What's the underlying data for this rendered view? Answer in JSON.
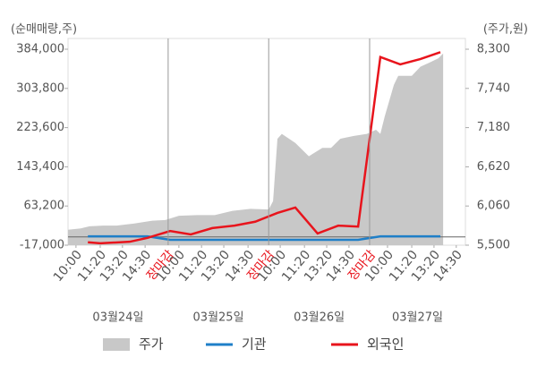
{
  "chart_data": {
    "type": "line",
    "y_axis_label": "(순매매량,주)",
    "y2_axis_label": "(주가,원)",
    "xlim": [
      0,
      100
    ],
    "xticks": [
      {
        "value": 2,
        "label": "10:00"
      },
      {
        "value": 8.1,
        "label": "11:20"
      },
      {
        "value": 13.7,
        "label": "13:20"
      },
      {
        "value": 19.4,
        "label": "14:30"
      },
      {
        "value": 25.2,
        "label": "장마감"
      },
      {
        "value": 27.9,
        "label": "10:00"
      },
      {
        "value": 33.6,
        "label": "11:20"
      },
      {
        "value": 39.2,
        "label": "13:20"
      },
      {
        "value": 45.3,
        "label": "14:30"
      },
      {
        "value": 50.5,
        "label": "장마감"
      },
      {
        "value": 53.4,
        "label": "10:00"
      },
      {
        "value": 59.5,
        "label": "11:20"
      },
      {
        "value": 65.1,
        "label": "13:20"
      },
      {
        "value": 70.7,
        "label": "14:30"
      },
      {
        "value": 75.9,
        "label": "장마감"
      },
      {
        "value": 80.4,
        "label": "10:00"
      },
      {
        "value": 86.5,
        "label": "11:20"
      },
      {
        "value": 92.1,
        "label": "13:20"
      },
      {
        "value": 97.7,
        "label": "14:30"
      }
    ],
    "dates": [
      "03월24일",
      "03월25일",
      "03월26일",
      "03월27일"
    ],
    "ylim": [
      -17000,
      384000
    ],
    "yticks": [
      {
        "value": 384000,
        "label": "384,000"
      },
      {
        "value": 303800,
        "label": "303,800"
      },
      {
        "value": 223600,
        "label": "223,600"
      },
      {
        "value": 143400,
        "label": "143,400"
      },
      {
        "value": 63200,
        "label": "63,200"
      },
      {
        "value": -17000,
        "label": "-17,000"
      }
    ],
    "y2lim": [
      5500,
      8300
    ],
    "y2ticks": [
      {
        "value": 8300,
        "label": "8,300"
      },
      {
        "value": 7740,
        "label": "7,740"
      },
      {
        "value": 7180,
        "label": "7,180"
      },
      {
        "value": 6620,
        "label": "6,620"
      },
      {
        "value": 6060,
        "label": "6,060"
      },
      {
        "value": 5500,
        "label": "5,500"
      }
    ],
    "series": [
      {
        "name": "주가",
        "type": "area",
        "axis": "y2",
        "color": "#c8c8c8",
        "x": [
          0,
          3.2,
          5.4,
          8.8,
          12.2,
          16.7,
          21.2,
          24.5,
          27.9,
          32.4,
          36.9,
          41.4,
          45.9,
          50.5,
          51.6,
          52.7,
          53.8,
          57.2,
          60.6,
          64,
          66.2,
          68.5,
          71.8,
          75.2,
          77.5,
          78.6,
          79.7,
          82,
          83.1,
          86.5,
          88.7,
          91,
          93.2,
          94.4
        ],
        "values": [
          5720,
          5740,
          5770,
          5780,
          5780,
          5810,
          5850,
          5860,
          5920,
          5930,
          5930,
          5990,
          6020,
          6010,
          6130,
          7020,
          7090,
          6960,
          6770,
          6890,
          6890,
          7020,
          7060,
          7090,
          7150,
          7090,
          7340,
          7790,
          7920,
          7920,
          8050,
          8110,
          8170,
          8240
        ]
      },
      {
        "name": "기관",
        "type": "line",
        "color": "#1f7fc8",
        "x": [
          5,
          20,
          25.7,
          73,
          78.6,
          93.7
        ],
        "values": [
          1000,
          1000,
          -6000,
          -6000,
          1000,
          1000
        ]
      },
      {
        "name": "외국인",
        "type": "line",
        "color": "#e8141c",
        "x": [
          5,
          8.1,
          15.5,
          20,
          25.7,
          30.9,
          36.3,
          41.9,
          47.1,
          52.7,
          57.2,
          62.8,
          68,
          73,
          78.6,
          83.6,
          88.7,
          93.7
        ],
        "values": [
          -11000,
          -13000,
          -10000,
          -2000,
          12000,
          5000,
          18000,
          23000,
          31000,
          49000,
          60000,
          7000,
          23000,
          21000,
          368000,
          353000,
          364000,
          378000
        ]
      }
    ]
  }
}
